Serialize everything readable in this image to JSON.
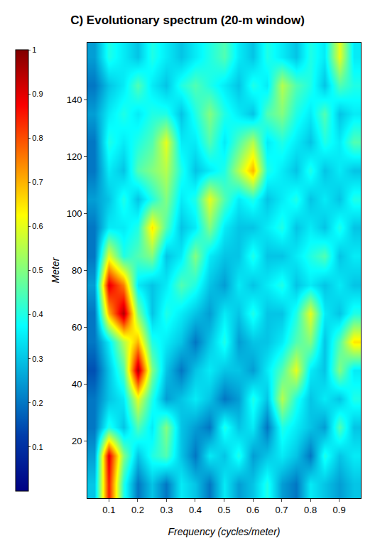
{
  "chart_data": {
    "type": "heatmap",
    "title": "C) Evolutionary spectrum (20-m window)",
    "x_label": "Frequency (cycles/meter)",
    "y_label": "Meter",
    "x": [
      0.05,
      0.1,
      0.15,
      0.2,
      0.25,
      0.3,
      0.35,
      0.4,
      0.45,
      0.5,
      0.55,
      0.6,
      0.65,
      0.7,
      0.75,
      0.8,
      0.85,
      0.9,
      0.95
    ],
    "y": [
      5,
      15,
      25,
      35,
      45,
      55,
      65,
      75,
      85,
      95,
      105,
      115,
      125,
      135,
      145,
      155
    ],
    "z": [
      [
        0.3,
        0.85,
        0.4,
        0.2,
        0.3,
        0.2,
        0.35,
        0.3,
        0.2,
        0.35,
        0.25,
        0.3,
        0.4,
        0.25,
        0.2,
        0.35,
        0.3,
        0.25,
        0.3
      ],
      [
        0.25,
        0.9,
        0.5,
        0.3,
        0.4,
        0.45,
        0.3,
        0.2,
        0.35,
        0.3,
        0.4,
        0.25,
        0.3,
        0.35,
        0.3,
        0.2,
        0.4,
        0.3,
        0.35
      ],
      [
        0.2,
        0.4,
        0.3,
        0.45,
        0.35,
        0.5,
        0.3,
        0.25,
        0.2,
        0.4,
        0.3,
        0.35,
        0.2,
        0.4,
        0.35,
        0.3,
        0.25,
        0.45,
        0.3
      ],
      [
        0.2,
        0.3,
        0.35,
        0.6,
        0.4,
        0.25,
        0.3,
        0.35,
        0.3,
        0.2,
        0.25,
        0.4,
        0.3,
        0.55,
        0.4,
        0.3,
        0.35,
        0.3,
        0.4
      ],
      [
        0.15,
        0.3,
        0.45,
        0.95,
        0.5,
        0.3,
        0.2,
        0.3,
        0.35,
        0.3,
        0.3,
        0.25,
        0.35,
        0.45,
        0.6,
        0.35,
        0.3,
        0.5,
        0.35
      ],
      [
        0.2,
        0.35,
        0.55,
        0.7,
        0.4,
        0.35,
        0.3,
        0.2,
        0.3,
        0.4,
        0.25,
        0.3,
        0.3,
        0.35,
        0.45,
        0.5,
        0.3,
        0.45,
        0.65
      ],
      [
        0.2,
        0.7,
        0.95,
        0.5,
        0.3,
        0.4,
        0.35,
        0.3,
        0.25,
        0.35,
        0.3,
        0.4,
        0.3,
        0.3,
        0.4,
        0.6,
        0.35,
        0.3,
        0.4
      ],
      [
        0.25,
        0.9,
        0.75,
        0.35,
        0.3,
        0.35,
        0.45,
        0.4,
        0.3,
        0.25,
        0.35,
        0.3,
        0.35,
        0.4,
        0.3,
        0.35,
        0.3,
        0.35,
        0.3
      ],
      [
        0.2,
        0.6,
        0.4,
        0.45,
        0.5,
        0.3,
        0.35,
        0.5,
        0.35,
        0.3,
        0.3,
        0.4,
        0.3,
        0.3,
        0.35,
        0.4,
        0.45,
        0.3,
        0.35
      ],
      [
        0.2,
        0.35,
        0.35,
        0.4,
        0.65,
        0.45,
        0.3,
        0.35,
        0.5,
        0.35,
        0.3,
        0.3,
        0.35,
        0.4,
        0.3,
        0.35,
        0.3,
        0.4,
        0.3
      ],
      [
        0.25,
        0.3,
        0.4,
        0.3,
        0.4,
        0.5,
        0.35,
        0.4,
        0.6,
        0.45,
        0.35,
        0.4,
        0.3,
        0.35,
        0.4,
        0.3,
        0.35,
        0.3,
        0.4
      ],
      [
        0.2,
        0.35,
        0.3,
        0.45,
        0.5,
        0.55,
        0.4,
        0.3,
        0.35,
        0.4,
        0.55,
        0.7,
        0.4,
        0.35,
        0.3,
        0.4,
        0.3,
        0.35,
        0.3
      ],
      [
        0.2,
        0.4,
        0.35,
        0.4,
        0.45,
        0.6,
        0.35,
        0.35,
        0.45,
        0.35,
        0.45,
        0.55,
        0.35,
        0.4,
        0.35,
        0.3,
        0.4,
        0.35,
        0.45
      ],
      [
        0.25,
        0.35,
        0.4,
        0.35,
        0.4,
        0.4,
        0.3,
        0.4,
        0.5,
        0.4,
        0.35,
        0.3,
        0.45,
        0.5,
        0.4,
        0.35,
        0.45,
        0.3,
        0.35
      ],
      [
        0.2,
        0.3,
        0.35,
        0.45,
        0.35,
        0.3,
        0.4,
        0.45,
        0.4,
        0.35,
        0.3,
        0.4,
        0.35,
        0.55,
        0.45,
        0.4,
        0.3,
        0.45,
        0.4
      ],
      [
        0.25,
        0.4,
        0.35,
        0.3,
        0.4,
        0.35,
        0.3,
        0.35,
        0.4,
        0.45,
        0.35,
        0.3,
        0.4,
        0.35,
        0.3,
        0.4,
        0.35,
        0.6,
        0.35
      ]
    ],
    "xlim": [
      0.025,
      0.975
    ],
    "xticks": [
      0.1,
      0.2,
      0.3,
      0.4,
      0.5,
      0.6,
      0.7,
      0.8,
      0.9
    ],
    "ylim": [
      0,
      160
    ],
    "yticks": [
      20,
      40,
      60,
      80,
      100,
      120,
      140
    ],
    "colorbar_range": [
      0,
      1
    ],
    "colorbar_ticks": [
      0.1,
      0.2,
      0.3,
      0.4,
      0.5,
      0.6,
      0.7,
      0.8,
      0.9,
      1
    ]
  }
}
